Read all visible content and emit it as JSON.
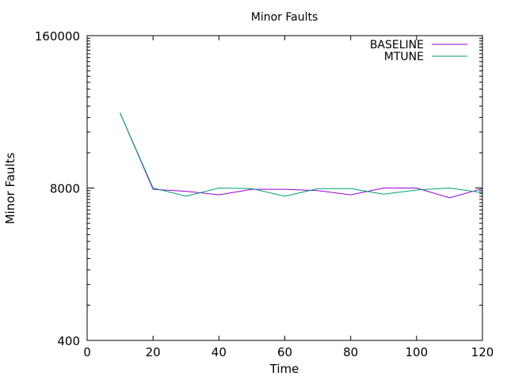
{
  "chart_data": {
    "type": "line",
    "title": "Minor Faults",
    "xlabel": "Time",
    "ylabel": "Minor Faults",
    "xlim": [
      0,
      120
    ],
    "ylim": [
      400,
      160000
    ],
    "y_scale": "log",
    "x_ticks": [
      0,
      20,
      40,
      60,
      80,
      100,
      120
    ],
    "y_ticks": [
      400,
      8000,
      160000
    ],
    "y_minor_ticks": [
      800,
      1200,
      1600,
      2000,
      2400,
      2800,
      3200,
      3600,
      4000,
      4400,
      4800,
      5200,
      5600,
      6000,
      6400,
      6800,
      7200,
      7600,
      16000,
      24000,
      32000,
      40000,
      48000,
      56000,
      64000,
      72000,
      80000,
      88000,
      96000,
      104000,
      112000,
      120000,
      128000,
      136000,
      144000,
      152000
    ],
    "legend_position": "top-right",
    "grid": false,
    "series": [
      {
        "name": "BASELINE",
        "color": "#9400d3",
        "x": [
          10,
          20,
          30,
          40,
          50,
          60,
          70,
          80,
          90,
          100,
          110,
          120
        ],
        "y": [
          35000,
          7800,
          7500,
          7000,
          7800,
          7800,
          7600,
          7000,
          8000,
          8000,
          6600,
          7900
        ]
      },
      {
        "name": "MTUNE",
        "color": "#009e73",
        "x": [
          10,
          20,
          30,
          40,
          50,
          60,
          70,
          80,
          90,
          100,
          110,
          120
        ],
        "y": [
          35000,
          8000,
          6800,
          8000,
          7900,
          6800,
          7900,
          7900,
          7100,
          7700,
          8000,
          7300
        ]
      }
    ]
  }
}
